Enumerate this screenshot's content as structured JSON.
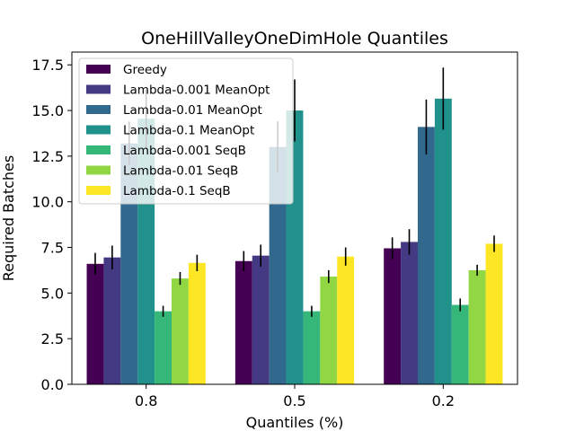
{
  "chart_data": {
    "type": "bar",
    "title": "OneHillValleyOneDimHole Quantiles",
    "xlabel": "Quantiles (%)",
    "ylabel": "Required Batches",
    "categories": [
      "0.8",
      "0.5",
      "0.2"
    ],
    "ylim": [
      0,
      18.2
    ],
    "yticks": [
      "0.0",
      "2.5",
      "5.0",
      "7.5",
      "10.0",
      "12.5",
      "15.0",
      "17.5"
    ],
    "ytick_values": [
      0,
      2.5,
      5,
      7.5,
      10,
      12.5,
      15,
      17.5
    ],
    "legend_position": "top-left",
    "series": [
      {
        "name": "Greedy",
        "color": "#440154",
        "values": [
          6.6,
          6.75,
          7.45
        ],
        "errors": [
          0.6,
          0.55,
          0.6
        ]
      },
      {
        "name": "Lambda-0.001 MeanOpt",
        "color": "#443983",
        "values": [
          6.95,
          7.05,
          7.8
        ],
        "errors": [
          0.65,
          0.6,
          0.7
        ]
      },
      {
        "name": "Lambda-0.01 MeanOpt",
        "color": "#31688e",
        "values": [
          13.2,
          13.0,
          14.1
        ],
        "errors": [
          1.2,
          1.4,
          1.5
        ]
      },
      {
        "name": "Lambda-0.1 MeanOpt",
        "color": "#21918c",
        "values": [
          14.55,
          15.0,
          15.65
        ],
        "errors": [
          1.6,
          1.7,
          1.7
        ]
      },
      {
        "name": "Lambda-0.001 SeqB",
        "color": "#35b779",
        "values": [
          4.0,
          4.0,
          4.35
        ],
        "errors": [
          0.3,
          0.3,
          0.35
        ]
      },
      {
        "name": "Lambda-0.01 SeqB",
        "color": "#90d743",
        "values": [
          5.8,
          5.9,
          6.25
        ],
        "errors": [
          0.35,
          0.35,
          0.3
        ]
      },
      {
        "name": "Lambda-0.1 SeqB",
        "color": "#fde725",
        "values": [
          6.65,
          7.0,
          7.7
        ],
        "errors": [
          0.45,
          0.5,
          0.45
        ]
      }
    ]
  }
}
